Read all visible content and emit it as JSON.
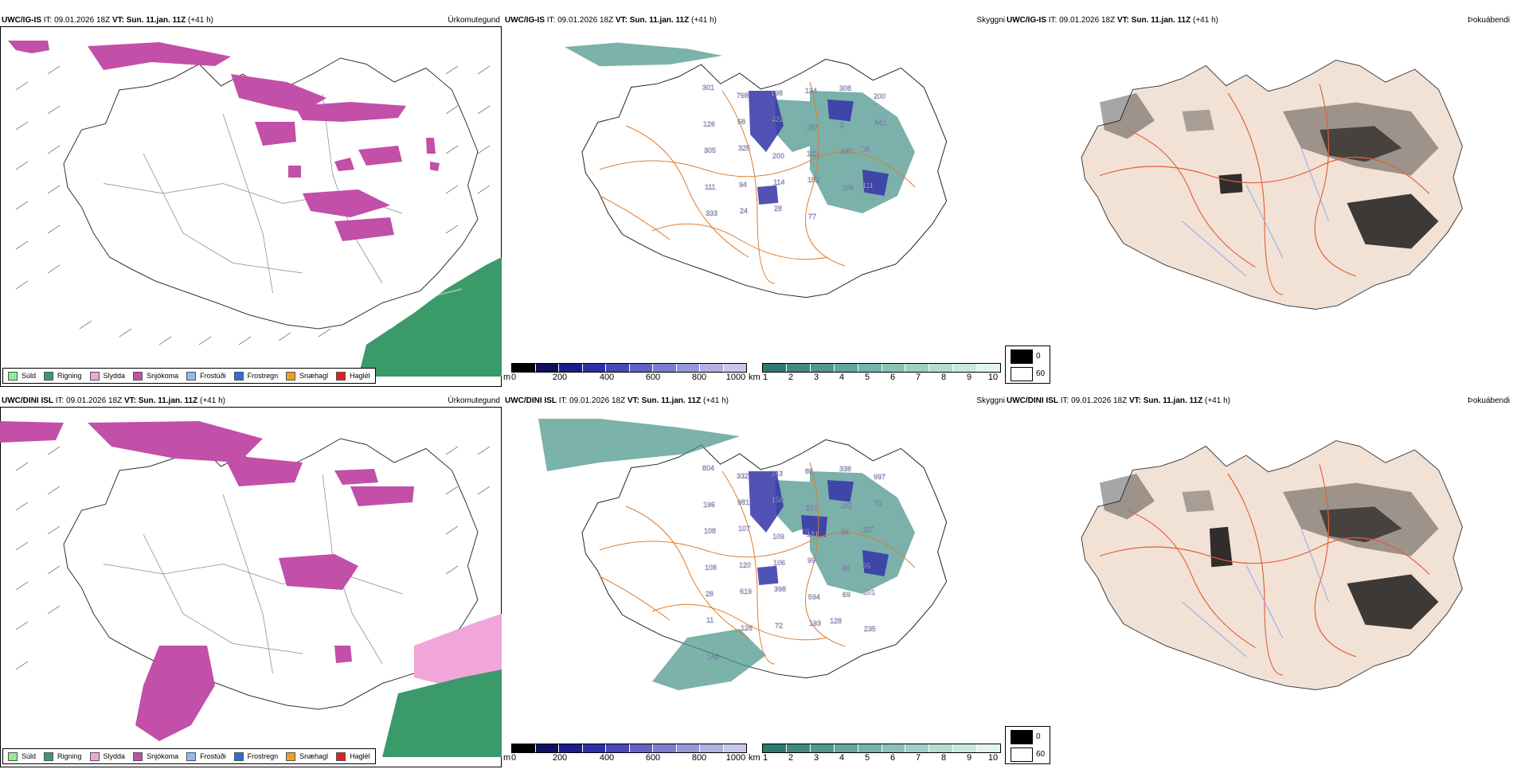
{
  "rows": [
    {
      "model_label": "UWC/IG-IS",
      "panels": {
        "precip": {
          "it_label": "IT: 09.01.2026 18Z",
          "vt_label": "VT: Sun. 11.jan. 11Z",
          "lead": "(+41 h)",
          "type_label": "Úrkomutegund"
        },
        "cloud": {
          "it_label": "IT: 09.01.2026 18Z",
          "vt_label": "VT: Sun. 11.jan. 11Z",
          "lead": "(+41 h)",
          "type_label": "Skyggni"
        },
        "fog": {
          "it_label": "IT: 09.01.2026 18Z",
          "vt_label": "VT: Sun. 11.jan. 11Z",
          "lead": "(+41 h)",
          "type_label": "Þokuábendi"
        }
      },
      "visibility_labels": [
        "301",
        "768",
        "198",
        "134",
        "308",
        "200",
        "126",
        "58",
        "422",
        "137",
        "2",
        "441",
        "305",
        "325",
        "200",
        "121",
        "630",
        "16",
        "111",
        "94",
        "114",
        "152",
        "156",
        "111",
        "333",
        "24",
        "28",
        "77"
      ]
    },
    {
      "model_label": "UWC/DINI ISL",
      "panels": {
        "precip": {
          "it_label": "IT: 09.01.2026 18Z",
          "vt_label": "VT: Sun. 11.jan. 11Z",
          "lead": "(+41 h)",
          "type_label": "Úrkomutegund"
        },
        "cloud": {
          "it_label": "IT: 09.01.2026 18Z",
          "vt_label": "VT: Sun. 11.jan. 11Z",
          "lead": "(+41 h)",
          "type_label": "Skyggni"
        },
        "fog": {
          "it_label": "IT: 09.01.2026 18Z",
          "vt_label": "VT: Sun. 11.jan. 11Z",
          "lead": "(+41 h)",
          "type_label": "Þokuábendi"
        }
      },
      "visibility_labels": [
        "804",
        "332",
        "243",
        "88",
        "338",
        "997",
        "196",
        "981",
        "158",
        "200",
        "162",
        "72",
        "108",
        "107",
        "109",
        "181",
        "99",
        "127",
        "108",
        "120",
        "106",
        "99",
        "48",
        "95",
        "28",
        "619",
        "398",
        "594",
        "69",
        "101",
        "11",
        "128",
        "72",
        "193",
        "128",
        "235",
        "145"
      ]
    }
  ],
  "precip_legend": [
    {
      "label": "Súld",
      "color": "#90ee90"
    },
    {
      "label": "Rigning",
      "color": "#3a9a6a"
    },
    {
      "label": "Slydda",
      "color": "#f0a6d8"
    },
    {
      "label": "Snjókoma",
      "color": "#c24fa8"
    },
    {
      "label": "Frostúði",
      "color": "#8cbcf0"
    },
    {
      "label": "Frostregn",
      "color": "#2f6fcf"
    },
    {
      "label": "Snæhagl",
      "color": "#f0a020"
    },
    {
      "label": "Haglél",
      "color": "#e02020"
    }
  ],
  "ceiling_bar": {
    "unit": "m",
    "ticks": [
      "0",
      "200",
      "400",
      "600",
      "800",
      "1000"
    ],
    "colors": [
      "#000000",
      "#101060",
      "#1c1c8a",
      "#2e2ea6",
      "#4848b6",
      "#6262c2",
      "#7c7cce",
      "#9696d8",
      "#b0b0e2",
      "#c8c8ec"
    ]
  },
  "visibility_bar": {
    "unit": "km",
    "ticks": [
      "1",
      "2",
      "3",
      "4",
      "5",
      "6",
      "7",
      "8",
      "9",
      "10"
    ],
    "colors": [
      "#2e7a72",
      "#3e8a80",
      "#4f988e",
      "#62a69c",
      "#76b4aa",
      "#8ac2b8",
      "#9ecfc6",
      "#b4dcd4",
      "#cae8e2",
      "#e2f4f0"
    ]
  },
  "fog_legend": [
    {
      "label": "0",
      "color": "#000000"
    },
    {
      "label": "60",
      "color": "#ffffff"
    }
  ],
  "colors": {
    "snow": "#c24fa8",
    "rain": "#3a9a6a",
    "sleet": "#f0a6d8",
    "ceiling": "#3434a8",
    "vis": "#4f988e",
    "roads": "#e07a2a",
    "fogland": "#f2e2d6",
    "fogroads": "#e0603a",
    "rivers": "#8aa2f0"
  }
}
